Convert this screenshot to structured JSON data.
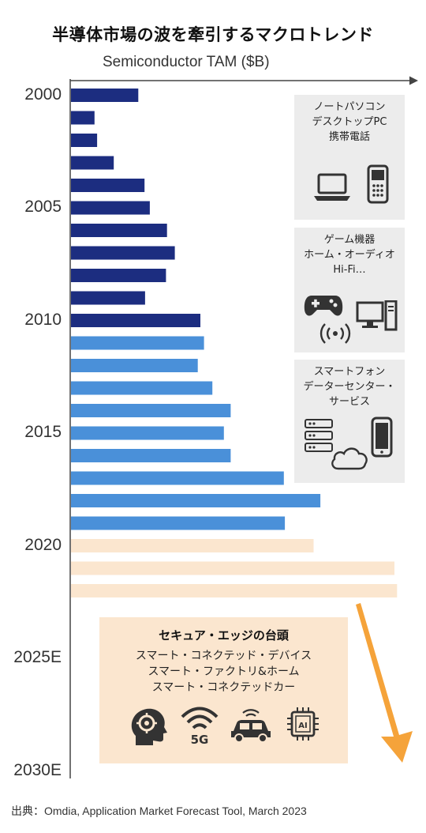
{
  "title": "半導体市場の波を牽引するマクロトレンド",
  "axis_title": "Semiconductor TAM ($B)",
  "source": "出典：Omdia, Application Market Forecast Tool, March 2023",
  "colors": {
    "wave1": "#1c2d80",
    "wave2": "#4a90d9",
    "forecast": "#fbe6cf",
    "box_gray": "#ececec",
    "arrow": "#f5a33a"
  },
  "info_boxes": [
    {
      "lines": [
        "ノートパソコン",
        "デスクトップPC",
        "携帯電話"
      ],
      "icons": [
        "laptop-icon",
        "mobile-phone-icon"
      ]
    },
    {
      "lines": [
        "ゲーム機器",
        "ホーム・オーディオ",
        "Hi-Fi…"
      ],
      "icons": [
        "game-controller-icon",
        "desktop-computer-icon",
        "wireless-speaker-icon"
      ]
    },
    {
      "lines": [
        "スマートフォン",
        "データーセンター・",
        "サービス"
      ],
      "icons": [
        "server-rack-icon",
        "cloud-icon",
        "smartphone-icon"
      ]
    }
  ],
  "edge_box": {
    "title": "セキュア・エッジの台頭",
    "lines": [
      "スマート・コネクテッド・デバイス",
      "スマート・ファクトリ&ホーム",
      "スマート・コネクテッドカー"
    ],
    "icons": [
      "ai-head-icon",
      "5g-wifi-icon",
      "connected-car-icon",
      "ai-chip-icon"
    ],
    "icon_text": {
      "fiveg": "5G",
      "ai": "AI"
    }
  },
  "chart_data": {
    "type": "bar",
    "orientation": "horizontal",
    "title": "半導体市場の波を牽引するマクロトレンド",
    "xlabel": "Semiconductor TAM ($B)",
    "y_tick_labels": [
      "2000",
      "2005",
      "2010",
      "2015",
      "2020",
      "2025E",
      "2030E"
    ],
    "xlim": [
      0,
      620
    ],
    "grid": false,
    "categories": [
      "2000",
      "2001",
      "2002",
      "2003",
      "2004",
      "2005",
      "2006",
      "2007",
      "2008",
      "2009",
      "2010",
      "2011",
      "2012",
      "2013",
      "2014",
      "2015",
      "2016",
      "2017",
      "2018",
      "2019",
      "2020",
      "2021",
      "2022"
    ],
    "values": [
      129,
      45,
      50,
      82,
      141,
      151,
      184,
      199,
      182,
      142,
      248,
      255,
      243,
      271,
      306,
      293,
      306,
      408,
      478,
      410,
      465,
      620,
      625
    ],
    "wave": [
      1,
      1,
      1,
      1,
      1,
      1,
      1,
      1,
      1,
      1,
      1,
      2,
      2,
      2,
      2,
      2,
      2,
      2,
      2,
      2,
      3,
      3,
      3
    ]
  }
}
